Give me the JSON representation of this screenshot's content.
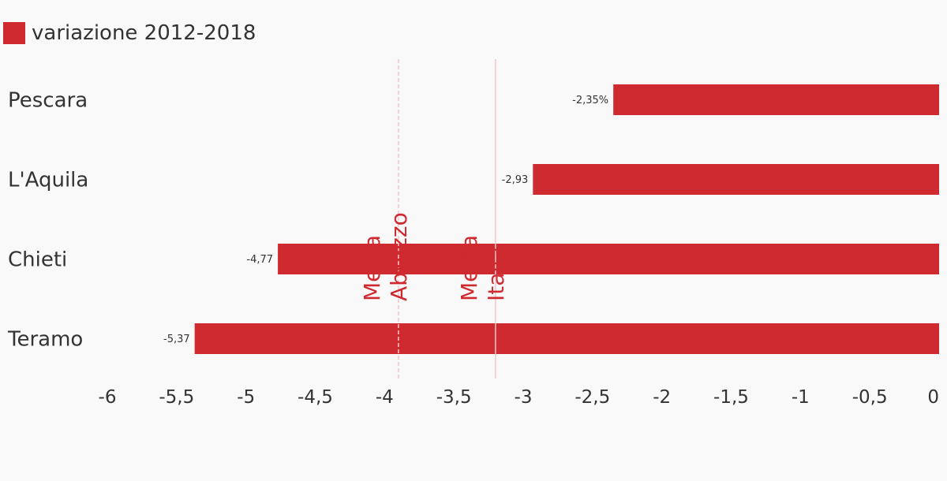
{
  "colors": {
    "bar": "#ce2a2f",
    "text": "#333333",
    "annotation_text": "#ce2a2f",
    "reference_line": "#f4c7c8",
    "background": "#f9f9f9"
  },
  "legend": {
    "label": "variazione 2012-2018"
  },
  "chart_data": {
    "type": "bar",
    "orientation": "horizontal",
    "categories": [
      "Pescara",
      "L'Aquila",
      "Chieti",
      "Teramo"
    ],
    "series": [
      {
        "name": "variazione 2012-2018",
        "values": [
          -2.35,
          -2.93,
          -4.77,
          -5.37
        ],
        "data_labels": [
          "-2,35%",
          "-2,93",
          "-4,77",
          "-5,37"
        ]
      }
    ],
    "xlim": [
      -6,
      0
    ],
    "xticks": [
      -6,
      -5.5,
      -5,
      -4.5,
      -4,
      -3.5,
      -3,
      -2.5,
      -2,
      -1.5,
      -1,
      -0.5,
      0
    ],
    "xtick_labels": [
      "-6",
      "-5,5",
      "-5",
      "-4,5",
      "-4",
      "-3,5",
      "-3",
      "-2,5",
      "-2",
      "-1,5",
      "-1",
      "-0,5",
      "0"
    ],
    "reference_lines": [
      {
        "value": -3.9,
        "label_lines": [
          "Media",
          "Abruzzo"
        ],
        "style": "dashed"
      },
      {
        "value": -3.2,
        "label_lines": [
          "Media",
          "Italia"
        ],
        "style": "solid"
      }
    ],
    "grid": false,
    "legend_position": "top-left"
  }
}
